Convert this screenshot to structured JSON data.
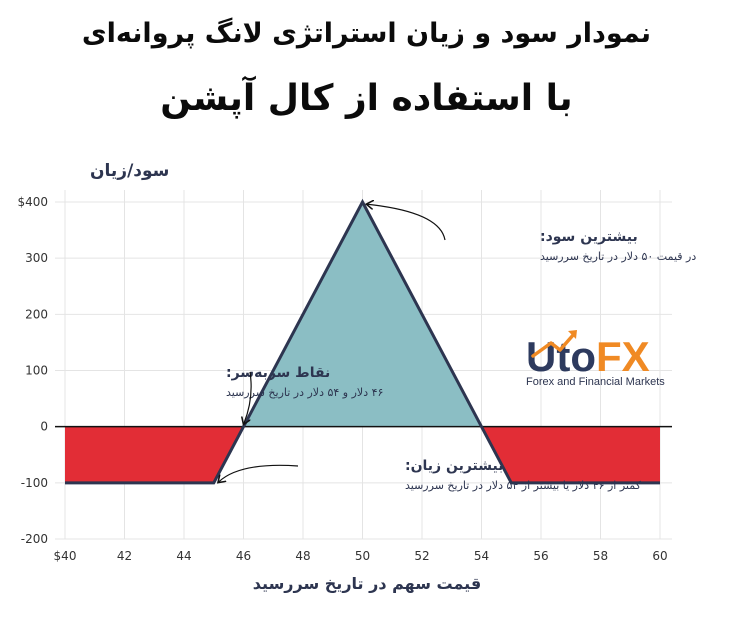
{
  "title_line1": "نمودار سود و زیان استراتژی لانگ پروانه‌ای",
  "title_line2": "با استفاده از کال آپشن",
  "chart_data": {
    "type": "line",
    "xlabel": "قیمت سهم در تاریخ سررسید",
    "ylabel": "سود/زیان",
    "xlim": [
      40,
      60
    ],
    "ylim": [
      -200,
      400
    ],
    "x_ticks": [
      "$40",
      "42",
      "44",
      "46",
      "48",
      "50",
      "52",
      "54",
      "56",
      "58",
      "60"
    ],
    "x_tick_values": [
      40,
      42,
      44,
      46,
      48,
      50,
      52,
      54,
      56,
      58,
      60
    ],
    "y_ticks": [
      "$400",
      "300",
      "200",
      "100",
      "0",
      "-100",
      "-200"
    ],
    "y_tick_values": [
      400,
      300,
      200,
      100,
      0,
      -100,
      -200
    ],
    "grid": true,
    "series": [
      {
        "x": [
          40,
          45,
          50,
          55,
          60
        ],
        "y": [
          -100,
          -100,
          400,
          -100,
          -100
        ]
      }
    ],
    "colors": {
      "line": "#2d3550",
      "profit_fill": "#8bbec4",
      "loss_fill": "#e22d36",
      "zero_line": "#111111",
      "grid": "#e4e4e4",
      "tick_text": "#333333",
      "annotation_text": "#2d3550"
    },
    "annotations": [
      {
        "name": "max-profit",
        "title": "بیشترین سود:",
        "text": "در قیمت ۵۰ دلار در تاریخ سررسید",
        "point": [
          50,
          400
        ]
      },
      {
        "name": "breakeven",
        "title": "نقاط سربه‌سر:",
        "text": "۴۶ دلار و ۵۴ دلار در تاریخ سررسید",
        "point": [
          46,
          0
        ]
      },
      {
        "name": "max-loss",
        "title": "بیشترین زیان:",
        "text": "کمتر از ۴۶ دلار یا بیشتر از ۵۴ دلار در تاریخ سررسید",
        "point": [
          45,
          -100
        ]
      }
    ]
  },
  "logo": {
    "name": "UtoFX",
    "part1": "Uto",
    "part2": "FX",
    "tagline": "Forex and Financial Markets",
    "color_dark": "#2d3a5e",
    "color_accent": "#f08a24"
  }
}
